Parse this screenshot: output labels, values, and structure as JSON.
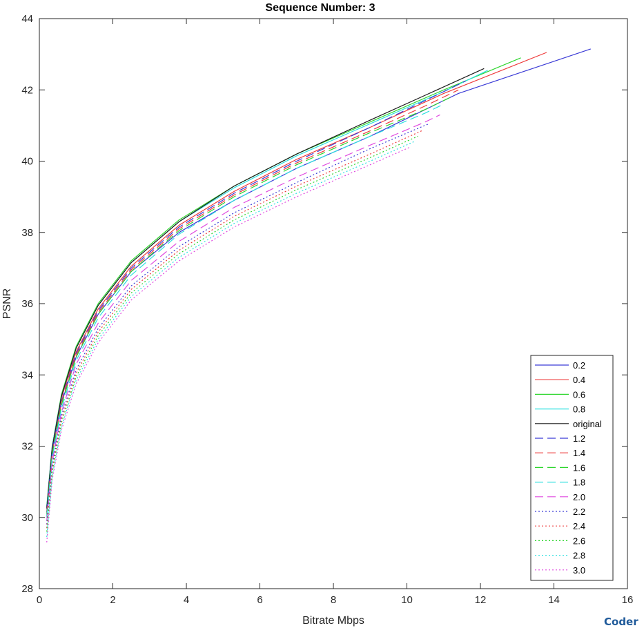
{
  "watermark": "Coder",
  "chart_data": {
    "type": "line",
    "title": "Sequence Number: 3",
    "xlabel": "Bitrate Mbps",
    "ylabel": "PSNR",
    "xlim": [
      0,
      16
    ],
    "ylim": [
      28,
      44
    ],
    "xticks": [
      0,
      2,
      4,
      6,
      8,
      10,
      12,
      14,
      16
    ],
    "yticks": [
      28,
      30,
      32,
      34,
      36,
      38,
      40,
      42,
      44
    ],
    "grid": false,
    "legend_position": "bottom-right",
    "series": [
      {
        "name": "0.2",
        "color": "#3b3bd6",
        "style": "solid",
        "x": [
          0.2,
          0.35,
          0.6,
          1.0,
          1.6,
          2.5,
          3.8,
          5.3,
          7.0,
          9.0,
          11.4,
          15.0
        ],
        "y": [
          30.1,
          31.8,
          33.2,
          34.5,
          35.7,
          36.9,
          38.0,
          38.9,
          39.8,
          40.7,
          41.9,
          43.15
        ]
      },
      {
        "name": "0.4",
        "color": "#ee3b3b",
        "style": "solid",
        "x": [
          0.2,
          0.35,
          0.6,
          1.0,
          1.6,
          2.5,
          3.8,
          5.3,
          7.0,
          9.0,
          11.0,
          13.8
        ],
        "y": [
          30.25,
          31.95,
          33.35,
          34.65,
          35.85,
          37.05,
          38.2,
          39.15,
          40.05,
          40.95,
          41.9,
          43.05
        ]
      },
      {
        "name": "0.6",
        "color": "#2ed62e",
        "style": "solid",
        "x": [
          0.2,
          0.35,
          0.6,
          1.0,
          1.6,
          2.5,
          3.8,
          5.3,
          7.0,
          9.0,
          11.0,
          13.1
        ],
        "y": [
          30.3,
          32.0,
          33.45,
          34.8,
          36.0,
          37.2,
          38.35,
          39.3,
          40.2,
          41.1,
          42.0,
          42.9
        ]
      },
      {
        "name": "0.8",
        "color": "#2de0e0",
        "style": "solid",
        "x": [
          0.2,
          0.35,
          0.6,
          1.0,
          1.6,
          2.5,
          3.8,
          5.3,
          7.0,
          9.0,
          11.0,
          12.2
        ],
        "y": [
          30.3,
          32.0,
          33.4,
          34.75,
          35.95,
          37.15,
          38.3,
          39.25,
          40.15,
          41.05,
          41.95,
          42.55
        ]
      },
      {
        "name": "original",
        "color": "#1a1a1a",
        "style": "solid",
        "x": [
          0.2,
          0.35,
          0.6,
          1.0,
          1.6,
          2.5,
          3.8,
          5.3,
          7.0,
          9.0,
          10.5,
          12.1
        ],
        "y": [
          30.25,
          31.95,
          33.4,
          34.75,
          35.95,
          37.15,
          38.3,
          39.3,
          40.2,
          41.15,
          41.85,
          42.6
        ]
      },
      {
        "name": "1.2",
        "color": "#3b3bd6",
        "style": "dash",
        "x": [
          0.2,
          0.35,
          0.6,
          1.0,
          1.6,
          2.5,
          3.8,
          5.3,
          7.0,
          9.0,
          10.5,
          11.6
        ],
        "y": [
          30.15,
          31.85,
          33.25,
          34.6,
          35.8,
          37.0,
          38.15,
          39.1,
          40.0,
          40.95,
          41.7,
          42.25
        ]
      },
      {
        "name": "1.4",
        "color": "#ee3b3b",
        "style": "dash",
        "x": [
          0.2,
          0.35,
          0.6,
          1.0,
          1.6,
          2.5,
          3.8,
          5.3,
          7.0,
          9.0,
          10.5,
          11.4
        ],
        "y": [
          30.1,
          31.8,
          33.2,
          34.55,
          35.75,
          36.95,
          38.1,
          39.05,
          39.95,
          40.85,
          41.55,
          42.0
        ]
      },
      {
        "name": "1.6",
        "color": "#2ed62e",
        "style": "dash",
        "x": [
          0.2,
          0.35,
          0.6,
          1.0,
          1.6,
          2.5,
          3.8,
          5.3,
          7.0,
          9.0,
          10.5,
          11.2
        ],
        "y": [
          30.05,
          31.75,
          33.15,
          34.5,
          35.7,
          36.9,
          38.05,
          39.0,
          39.9,
          40.8,
          41.45,
          41.8
        ]
      },
      {
        "name": "1.8",
        "color": "#2de0e0",
        "style": "dash",
        "x": [
          0.2,
          0.35,
          0.6,
          1.0,
          1.6,
          2.5,
          3.8,
          5.3,
          7.0,
          9.0,
          10.5,
          11.0
        ],
        "y": [
          30.0,
          31.65,
          33.05,
          34.4,
          35.6,
          36.8,
          37.95,
          38.9,
          39.8,
          40.7,
          41.35,
          41.6
        ]
      },
      {
        "name": "2.0",
        "color": "#e04ae0",
        "style": "dash",
        "x": [
          0.2,
          0.35,
          0.6,
          1.0,
          1.6,
          2.5,
          3.8,
          5.3,
          7.0,
          9.0,
          10.5,
          10.9
        ],
        "y": [
          29.9,
          31.55,
          32.95,
          34.3,
          35.45,
          36.65,
          37.75,
          38.7,
          39.55,
          40.45,
          41.1,
          41.3
        ]
      },
      {
        "name": "2.2",
        "color": "#3b3bd6",
        "style": "dot",
        "x": [
          0.2,
          0.35,
          0.6,
          1.0,
          1.6,
          2.5,
          3.8,
          5.3,
          7.0,
          9.0,
          10.6
        ],
        "y": [
          29.8,
          31.45,
          32.85,
          34.15,
          35.3,
          36.5,
          37.6,
          38.55,
          39.4,
          40.35,
          41.05
        ]
      },
      {
        "name": "2.4",
        "color": "#ee3b3b",
        "style": "dot",
        "x": [
          0.2,
          0.35,
          0.6,
          1.0,
          1.6,
          2.5,
          3.8,
          5.3,
          7.0,
          9.0,
          10.4
        ],
        "y": [
          29.7,
          31.35,
          32.75,
          34.05,
          35.2,
          36.4,
          37.5,
          38.45,
          39.3,
          40.2,
          40.85
        ]
      },
      {
        "name": "2.6",
        "color": "#2ed62e",
        "style": "dot",
        "x": [
          0.2,
          0.35,
          0.6,
          1.0,
          1.6,
          2.5,
          3.8,
          5.3,
          7.0,
          9.0,
          10.3
        ],
        "y": [
          29.6,
          31.25,
          32.65,
          33.95,
          35.1,
          36.3,
          37.4,
          38.35,
          39.2,
          40.1,
          40.7
        ]
      },
      {
        "name": "2.8",
        "color": "#2de0e0",
        "style": "dot",
        "x": [
          0.2,
          0.35,
          0.6,
          1.0,
          1.6,
          2.5,
          3.8,
          5.3,
          7.0,
          9.0,
          10.2
        ],
        "y": [
          29.45,
          31.15,
          32.55,
          33.85,
          35.0,
          36.2,
          37.3,
          38.25,
          39.1,
          40.0,
          40.55
        ]
      },
      {
        "name": "3.0",
        "color": "#e04ae0",
        "style": "dot",
        "x": [
          0.2,
          0.35,
          0.6,
          1.0,
          1.6,
          2.5,
          3.8,
          5.3,
          7.0,
          9.0,
          10.1
        ],
        "y": [
          29.3,
          31.05,
          32.45,
          33.75,
          34.9,
          36.1,
          37.2,
          38.15,
          39.0,
          39.9,
          40.4
        ]
      }
    ]
  }
}
